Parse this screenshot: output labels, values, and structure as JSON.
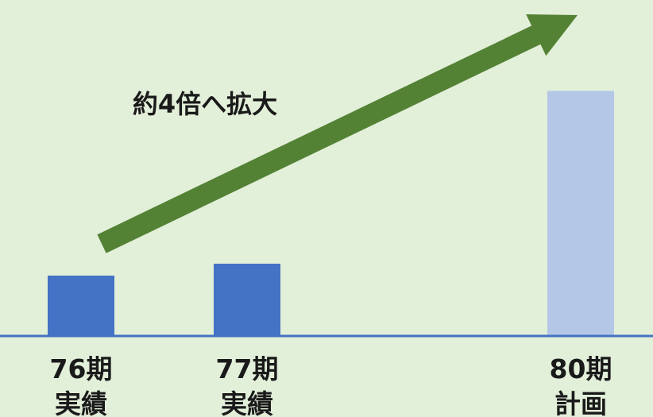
{
  "chart_data": {
    "type": "bar",
    "categories": [
      [
        "76期",
        "実績"
      ],
      [
        "77期",
        "実績"
      ],
      [
        "80期",
        "計画"
      ]
    ],
    "values": [
      1,
      1.2,
      4.1
    ],
    "annotation": "約4倍へ拡大",
    "colors": {
      "background": "#e2efd9",
      "actual_bar": "#4472c4",
      "plan_bar": "#b4c7e7",
      "axis": "#4472c4",
      "arrow": "#548235"
    },
    "grid": false,
    "legend": "none"
  }
}
